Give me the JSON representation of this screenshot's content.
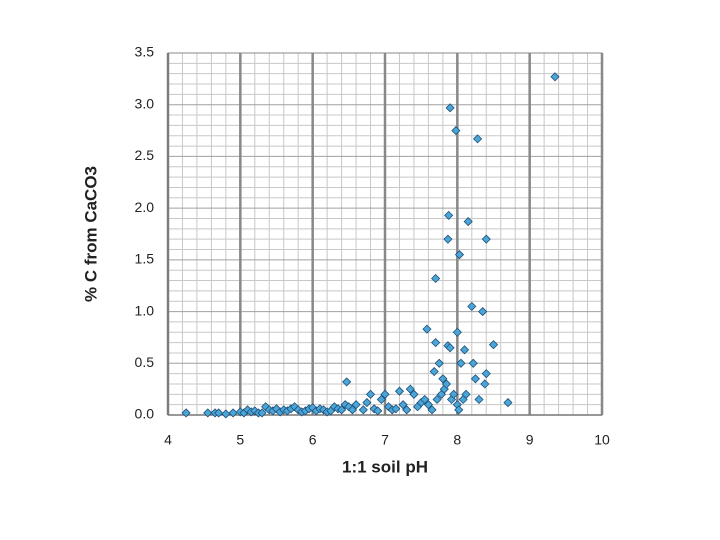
{
  "chart_data": {
    "type": "scatter",
    "x_label": "1:1 soil pH",
    "y_label": "% C from CaCO3",
    "x": [
      4.25,
      4.55,
      4.65,
      4.7,
      4.8,
      4.9,
      5.0,
      5.05,
      5.1,
      5.15,
      5.2,
      5.25,
      5.3,
      5.35,
      5.4,
      5.45,
      5.5,
      5.55,
      5.6,
      5.65,
      5.7,
      5.75,
      5.8,
      5.85,
      5.9,
      5.95,
      6.0,
      6.05,
      6.1,
      6.15,
      6.2,
      6.25,
      6.3,
      6.35,
      6.4,
      6.45,
      6.47,
      6.5,
      6.55,
      6.6,
      6.7,
      6.75,
      6.8,
      6.85,
      6.9,
      6.95,
      7.0,
      7.05,
      7.1,
      7.15,
      7.2,
      7.25,
      7.3,
      7.35,
      7.4,
      7.45,
      7.5,
      7.55,
      7.58,
      7.6,
      7.65,
      7.68,
      7.7,
      7.7,
      7.72,
      7.75,
      7.78,
      7.8,
      7.82,
      7.85,
      7.87,
      7.88,
      7.87,
      7.9,
      7.9,
      7.92,
      7.95,
      7.98,
      8.0,
      8.0,
      8.02,
      8.03,
      8.05,
      8.08,
      8.1,
      8.12,
      8.15,
      8.2,
      8.22,
      8.25,
      8.28,
      8.3,
      8.35,
      8.38,
      8.4,
      8.4,
      8.5,
      8.7,
      9.35
    ],
    "values": [
      0.02,
      0.02,
      0.02,
      0.02,
      0.01,
      0.02,
      0.03,
      0.02,
      0.05,
      0.03,
      0.04,
      0.02,
      0.02,
      0.08,
      0.05,
      0.04,
      0.06,
      0.03,
      0.05,
      0.04,
      0.06,
      0.08,
      0.05,
      0.03,
      0.04,
      0.06,
      0.07,
      0.04,
      0.06,
      0.05,
      0.03,
      0.04,
      0.08,
      0.06,
      0.05,
      0.1,
      0.32,
      0.08,
      0.05,
      0.1,
      0.05,
      0.12,
      0.2,
      0.06,
      0.04,
      0.15,
      0.2,
      0.08,
      0.05,
      0.06,
      0.23,
      0.1,
      0.05,
      0.25,
      0.2,
      0.08,
      0.12,
      0.15,
      0.83,
      0.1,
      0.05,
      0.42,
      0.7,
      1.32,
      0.15,
      0.5,
      0.2,
      0.35,
      0.25,
      0.3,
      0.67,
      1.93,
      1.7,
      0.65,
      2.97,
      0.15,
      0.2,
      2.75,
      0.8,
      0.1,
      0.05,
      1.55,
      0.5,
      0.15,
      0.63,
      0.2,
      1.87,
      1.05,
      0.5,
      0.35,
      2.67,
      0.15,
      1.0,
      0.3,
      1.7,
      0.4,
      0.68,
      0.12,
      3.27
    ],
    "color": "#4ba6d8",
    "edge_color": "#1f4e79",
    "xlim": [
      4,
      10
    ],
    "xticks": [
      4,
      5,
      6,
      7,
      8,
      9,
      10
    ],
    "ylim": [
      0,
      3.5
    ],
    "yticks": [
      {
        "value": 0,
        "label": "0.0"
      },
      0.5,
      {
        "value": 1,
        "label": "1.0"
      },
      1.5,
      {
        "value": 2,
        "label": "2.0"
      },
      2.5,
      {
        "value": 3,
        "label": "3.0"
      },
      3.5
    ],
    "grid": true,
    "minor_grid": true
  }
}
